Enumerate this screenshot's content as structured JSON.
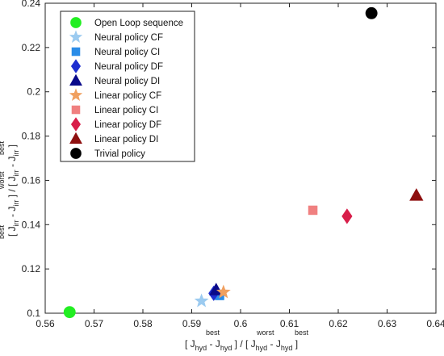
{
  "chart_data": {
    "type": "scatter",
    "xlim": [
      0.56,
      0.64
    ],
    "ylim": [
      0.1,
      0.24
    ],
    "x_ticks": [
      "0.56",
      "0.57",
      "0.58",
      "0.59",
      "0.6",
      "0.61",
      "0.62",
      "0.63",
      "0.64"
    ],
    "y_ticks": [
      "0.1",
      "0.12",
      "0.14",
      "0.16",
      "0.18",
      "0.2",
      "0.22",
      "0.24"
    ],
    "x_tick_values": [
      0.56,
      0.57,
      0.58,
      0.59,
      0.6,
      0.61,
      0.62,
      0.63,
      0.64
    ],
    "y_tick_values": [
      0.1,
      0.12,
      0.14,
      0.16,
      0.18,
      0.2,
      0.22,
      0.24
    ],
    "xlabel": {
      "p1": "[ J",
      "s1_top": "best",
      "s1_bot": "hyd",
      "p2": " - J",
      "s2_top": "",
      "s2_bot": "hyd",
      "p3": " ] / [ J",
      "s3_top": "worst",
      "s3_bot": "hyd",
      "p4": " - J",
      "s4_top": "best",
      "s4_bot": "hyd",
      "p5": " ]"
    },
    "ylabel": {
      "p1": "[ J",
      "s1_top": "best",
      "s1_bot": "irr",
      "p2": " - J",
      "s2_top": "",
      "s2_bot": "irr",
      "p3": " ] / [ J",
      "s3_top": "worst",
      "s3_bot": "irr",
      "p4": " - J",
      "s4_top": "best",
      "s4_bot": "irr",
      "p5": " ]"
    },
    "legend_position": "top-left",
    "grid": false,
    "series": [
      {
        "name": "Open Loop sequence",
        "marker": "circle",
        "color": "#22ee22",
        "points": [
          [
            0.565,
            0.1005
          ]
        ]
      },
      {
        "name": "Neural policy CF",
        "marker": "star",
        "color": "#9ccbf0",
        "points": [
          [
            0.592,
            0.1055
          ]
        ]
      },
      {
        "name": "Neural policy CI",
        "marker": "square",
        "color": "#2a8ce8",
        "points": [
          [
            0.5957,
            0.108
          ]
        ]
      },
      {
        "name": "Neural policy DF",
        "marker": "diamond",
        "color": "#1f2fd0",
        "points": [
          [
            0.5945,
            0.109
          ]
        ]
      },
      {
        "name": "Neural policy DI",
        "marker": "triangle",
        "color": "#0a0a8a",
        "points": [
          [
            0.595,
            0.1105
          ]
        ]
      },
      {
        "name": "Linear policy CF",
        "marker": "star",
        "color": "#f0a060",
        "points": [
          [
            0.5965,
            0.1095
          ]
        ]
      },
      {
        "name": "Linear policy CI",
        "marker": "square",
        "color": "#f08080",
        "points": [
          [
            0.6148,
            0.1465
          ]
        ]
      },
      {
        "name": "Linear policy DF",
        "marker": "diamond",
        "color": "#d81e4a",
        "points": [
          [
            0.6218,
            0.1438
          ]
        ]
      },
      {
        "name": "Linear policy DI",
        "marker": "triangle",
        "color": "#8e0f0f",
        "points": [
          [
            0.636,
            0.1532
          ]
        ]
      },
      {
        "name": "Trivial policy",
        "marker": "circle",
        "color": "#000000",
        "points": [
          [
            0.6268,
            0.2355
          ]
        ]
      }
    ]
  }
}
